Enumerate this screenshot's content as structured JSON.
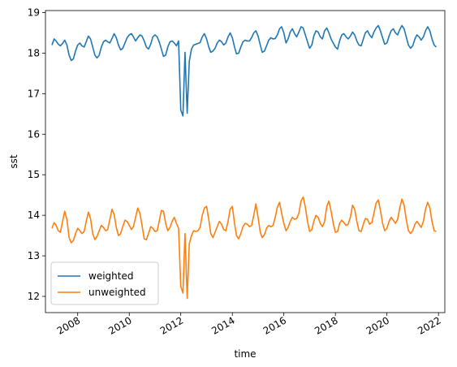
{
  "chart_data": {
    "type": "line",
    "title": "",
    "xlabel": "time",
    "ylabel": "sst",
    "xlim": [
      "2006-10-01",
      "2022-04-01"
    ],
    "ylim": [
      11.6,
      19.05
    ],
    "x_ticks": [
      "2008",
      "2010",
      "2012",
      "2014",
      "2016",
      "2018",
      "2020",
      "2022"
    ],
    "y_ticks": [
      "12",
      "13",
      "14",
      "15",
      "16",
      "17",
      "18",
      "19"
    ],
    "grid": false,
    "legend_position": "lower-left",
    "colors": {
      "weighted": "#1f77b4",
      "unweighted": "#ff7f0e"
    },
    "series": [
      {
        "name": "weighted",
        "x": [
          "2007-01-01",
          "2007-02-01",
          "2007-03-01",
          "2007-04-01",
          "2007-05-01",
          "2007-06-01",
          "2007-07-01",
          "2007-08-01",
          "2007-09-01",
          "2007-10-01",
          "2007-11-01",
          "2007-12-01",
          "2008-01-01",
          "2008-02-01",
          "2008-03-01",
          "2008-04-01",
          "2008-05-01",
          "2008-06-01",
          "2008-07-01",
          "2008-08-01",
          "2008-09-01",
          "2008-10-01",
          "2008-11-01",
          "2008-12-01",
          "2009-01-01",
          "2009-02-01",
          "2009-03-01",
          "2009-04-01",
          "2009-05-01",
          "2009-06-01",
          "2009-07-01",
          "2009-08-01",
          "2009-09-01",
          "2009-10-01",
          "2009-11-01",
          "2009-12-01",
          "2010-01-01",
          "2010-02-01",
          "2010-03-01",
          "2010-04-01",
          "2010-05-01",
          "2010-06-01",
          "2010-07-01",
          "2010-08-01",
          "2010-09-01",
          "2010-10-01",
          "2010-11-01",
          "2010-12-01",
          "2011-01-01",
          "2011-02-01",
          "2011-03-01",
          "2011-04-01",
          "2011-05-01",
          "2011-06-01",
          "2011-07-01",
          "2011-08-01",
          "2011-09-01",
          "2011-10-01",
          "2011-11-01",
          "2011-12-01",
          "2012-01-01",
          "2012-02-01",
          "2012-03-01",
          "2012-04-01",
          "2012-05-01",
          "2012-06-01",
          "2012-07-01",
          "2012-08-01",
          "2012-09-01",
          "2012-10-01",
          "2012-11-01",
          "2012-12-01",
          "2013-01-01",
          "2013-02-01",
          "2013-03-01",
          "2013-04-01",
          "2013-05-01",
          "2013-06-01",
          "2013-07-01",
          "2013-08-01",
          "2013-09-01",
          "2013-10-01",
          "2013-11-01",
          "2013-12-01",
          "2014-01-01",
          "2014-02-01",
          "2014-03-01",
          "2014-04-01",
          "2014-05-01",
          "2014-06-01",
          "2014-07-01",
          "2014-08-01",
          "2014-09-01",
          "2014-10-01",
          "2014-11-01",
          "2014-12-01",
          "2015-01-01",
          "2015-02-01",
          "2015-03-01",
          "2015-04-01",
          "2015-05-01",
          "2015-06-01",
          "2015-07-01",
          "2015-08-01",
          "2015-09-01",
          "2015-10-01",
          "2015-11-01",
          "2015-12-01",
          "2016-01-01",
          "2016-02-01",
          "2016-03-01",
          "2016-04-01",
          "2016-05-01",
          "2016-06-01",
          "2016-07-01",
          "2016-08-01",
          "2016-09-01",
          "2016-10-01",
          "2016-11-01",
          "2016-12-01",
          "2017-01-01",
          "2017-02-01",
          "2017-03-01",
          "2017-04-01",
          "2017-05-01",
          "2017-06-01",
          "2017-07-01",
          "2017-08-01",
          "2017-09-01",
          "2017-10-01",
          "2017-11-01",
          "2017-12-01",
          "2018-01-01",
          "2018-02-01",
          "2018-03-01",
          "2018-04-01",
          "2018-05-01",
          "2018-06-01",
          "2018-07-01",
          "2018-08-01",
          "2018-09-01",
          "2018-10-01",
          "2018-11-01",
          "2018-12-01",
          "2019-01-01",
          "2019-02-01",
          "2019-03-01",
          "2019-04-01",
          "2019-05-01",
          "2019-06-01",
          "2019-07-01",
          "2019-08-01",
          "2019-09-01",
          "2019-10-01",
          "2019-11-01",
          "2019-12-01",
          "2020-01-01",
          "2020-02-01",
          "2020-03-01",
          "2020-04-01",
          "2020-05-01",
          "2020-06-01",
          "2020-07-01",
          "2020-08-01",
          "2020-09-01",
          "2020-10-01",
          "2020-11-01",
          "2020-12-01",
          "2021-01-01",
          "2021-02-01",
          "2021-03-01",
          "2021-04-01",
          "2021-05-01",
          "2021-06-01",
          "2021-07-01",
          "2021-08-01",
          "2021-09-01",
          "2021-10-01",
          "2021-11-01",
          "2021-12-01"
        ],
        "values": [
          18.2,
          18.35,
          18.3,
          18.22,
          18.18,
          18.24,
          18.32,
          18.2,
          17.95,
          17.82,
          17.86,
          18.05,
          18.2,
          18.25,
          18.18,
          18.15,
          18.28,
          18.42,
          18.35,
          18.15,
          17.95,
          17.88,
          17.95,
          18.15,
          18.28,
          18.32,
          18.28,
          18.25,
          18.36,
          18.48,
          18.38,
          18.2,
          18.08,
          18.12,
          18.25,
          18.38,
          18.45,
          18.48,
          18.4,
          18.3,
          18.38,
          18.45,
          18.42,
          18.3,
          18.15,
          18.1,
          18.22,
          18.4,
          18.45,
          18.4,
          18.28,
          18.1,
          17.92,
          17.95,
          18.15,
          18.28,
          18.3,
          18.25,
          18.18,
          18.3,
          16.6,
          16.45,
          18.02,
          16.52,
          17.8,
          18.1,
          18.2,
          18.22,
          18.24,
          18.26,
          18.4,
          18.48,
          18.35,
          18.15,
          18.02,
          18.05,
          18.12,
          18.25,
          18.32,
          18.28,
          18.2,
          18.25,
          18.4,
          18.5,
          18.38,
          18.15,
          17.98,
          18.0,
          18.15,
          18.28,
          18.32,
          18.3,
          18.3,
          18.38,
          18.5,
          18.55,
          18.42,
          18.2,
          18.02,
          18.05,
          18.18,
          18.32,
          18.38,
          18.35,
          18.36,
          18.45,
          18.6,
          18.65,
          18.5,
          18.25,
          18.35,
          18.52,
          18.6,
          18.48,
          18.4,
          18.52,
          18.65,
          18.62,
          18.45,
          18.28,
          18.12,
          18.2,
          18.42,
          18.55,
          18.52,
          18.4,
          18.35,
          18.55,
          18.62,
          18.5,
          18.35,
          18.25,
          18.15,
          18.1,
          18.3,
          18.45,
          18.48,
          18.4,
          18.35,
          18.42,
          18.52,
          18.45,
          18.3,
          18.2,
          18.18,
          18.35,
          18.5,
          18.55,
          18.45,
          18.38,
          18.52,
          18.62,
          18.68,
          18.55,
          18.38,
          18.22,
          18.25,
          18.42,
          18.55,
          18.6,
          18.5,
          18.45,
          18.58,
          18.68,
          18.6,
          18.4,
          18.2,
          18.12,
          18.18,
          18.35,
          18.45,
          18.4,
          18.32,
          18.4,
          18.55,
          18.65,
          18.55,
          18.35,
          18.2,
          18.15
        ]
      },
      {
        "name": "unweighted",
        "x": [
          "2007-01-01",
          "2007-02-01",
          "2007-03-01",
          "2007-04-01",
          "2007-05-01",
          "2007-06-01",
          "2007-07-01",
          "2007-08-01",
          "2007-09-01",
          "2007-10-01",
          "2007-11-01",
          "2007-12-01",
          "2008-01-01",
          "2008-02-01",
          "2008-03-01",
          "2008-04-01",
          "2008-05-01",
          "2008-06-01",
          "2008-07-01",
          "2008-08-01",
          "2008-09-01",
          "2008-10-01",
          "2008-11-01",
          "2008-12-01",
          "2009-01-01",
          "2009-02-01",
          "2009-03-01",
          "2009-04-01",
          "2009-05-01",
          "2009-06-01",
          "2009-07-01",
          "2009-08-01",
          "2009-09-01",
          "2009-10-01",
          "2009-11-01",
          "2009-12-01",
          "2010-01-01",
          "2010-02-01",
          "2010-03-01",
          "2010-04-01",
          "2010-05-01",
          "2010-06-01",
          "2010-07-01",
          "2010-08-01",
          "2010-09-01",
          "2010-10-01",
          "2010-11-01",
          "2010-12-01",
          "2011-01-01",
          "2011-02-01",
          "2011-03-01",
          "2011-04-01",
          "2011-05-01",
          "2011-06-01",
          "2011-07-01",
          "2011-08-01",
          "2011-09-01",
          "2011-10-01",
          "2011-11-01",
          "2011-12-01",
          "2012-01-01",
          "2012-02-01",
          "2012-03-01",
          "2012-04-01",
          "2012-05-01",
          "2012-06-01",
          "2012-07-01",
          "2012-08-01",
          "2012-09-01",
          "2012-10-01",
          "2012-11-01",
          "2012-12-01",
          "2013-01-01",
          "2013-02-01",
          "2013-03-01",
          "2013-04-01",
          "2013-05-01",
          "2013-06-01",
          "2013-07-01",
          "2013-08-01",
          "2013-09-01",
          "2013-10-01",
          "2013-11-01",
          "2013-12-01",
          "2014-01-01",
          "2014-02-01",
          "2014-03-01",
          "2014-04-01",
          "2014-05-01",
          "2014-06-01",
          "2014-07-01",
          "2014-08-01",
          "2014-09-01",
          "2014-10-01",
          "2014-11-01",
          "2014-12-01",
          "2015-01-01",
          "2015-02-01",
          "2015-03-01",
          "2015-04-01",
          "2015-05-01",
          "2015-06-01",
          "2015-07-01",
          "2015-08-01",
          "2015-09-01",
          "2015-10-01",
          "2015-11-01",
          "2015-12-01",
          "2016-01-01",
          "2016-02-01",
          "2016-03-01",
          "2016-04-01",
          "2016-05-01",
          "2016-06-01",
          "2016-07-01",
          "2016-08-01",
          "2016-09-01",
          "2016-10-01",
          "2016-11-01",
          "2016-12-01",
          "2017-01-01",
          "2017-02-01",
          "2017-03-01",
          "2017-04-01",
          "2017-05-01",
          "2017-06-01",
          "2017-07-01",
          "2017-08-01",
          "2017-09-01",
          "2017-10-01",
          "2017-11-01",
          "2017-12-01",
          "2018-01-01",
          "2018-02-01",
          "2018-03-01",
          "2018-04-01",
          "2018-05-01",
          "2018-06-01",
          "2018-07-01",
          "2018-08-01",
          "2018-09-01",
          "2018-10-01",
          "2018-11-01",
          "2018-12-01",
          "2019-01-01",
          "2019-02-01",
          "2019-03-01",
          "2019-04-01",
          "2019-05-01",
          "2019-06-01",
          "2019-07-01",
          "2019-08-01",
          "2019-09-01",
          "2019-10-01",
          "2019-11-01",
          "2019-12-01",
          "2020-01-01",
          "2020-02-01",
          "2020-03-01",
          "2020-04-01",
          "2020-05-01",
          "2020-06-01",
          "2020-07-01",
          "2020-08-01",
          "2020-09-01",
          "2020-10-01",
          "2020-11-01",
          "2020-12-01",
          "2021-01-01",
          "2021-02-01",
          "2021-03-01",
          "2021-04-01",
          "2021-05-01",
          "2021-06-01",
          "2021-07-01",
          "2021-08-01",
          "2021-09-01",
          "2021-10-01",
          "2021-11-01",
          "2021-12-01"
        ],
        "values": [
          13.68,
          13.82,
          13.75,
          13.62,
          13.58,
          13.85,
          14.1,
          13.9,
          13.45,
          13.32,
          13.38,
          13.55,
          13.68,
          13.62,
          13.55,
          13.6,
          13.85,
          14.08,
          13.92,
          13.55,
          13.4,
          13.48,
          13.62,
          13.75,
          13.7,
          13.62,
          13.65,
          13.9,
          14.15,
          14.02,
          13.7,
          13.5,
          13.55,
          13.72,
          13.88,
          13.85,
          13.75,
          13.65,
          13.72,
          13.95,
          14.18,
          14.05,
          13.75,
          13.42,
          13.4,
          13.55,
          13.72,
          13.68,
          13.6,
          13.62,
          13.85,
          14.12,
          14.1,
          13.8,
          13.62,
          13.7,
          13.85,
          13.95,
          13.8,
          13.68,
          12.25,
          12.08,
          13.55,
          11.95,
          13.3,
          13.5,
          13.62,
          13.6,
          13.62,
          13.7,
          14.0,
          14.18,
          14.22,
          13.9,
          13.55,
          13.45,
          13.58,
          13.72,
          13.85,
          13.78,
          13.65,
          13.62,
          13.85,
          14.15,
          14.22,
          13.8,
          13.5,
          13.42,
          13.55,
          13.72,
          13.8,
          13.78,
          13.72,
          13.75,
          14.0,
          14.28,
          13.95,
          13.58,
          13.45,
          13.52,
          13.68,
          13.75,
          13.72,
          13.75,
          13.95,
          14.2,
          14.32,
          14.05,
          13.8,
          13.62,
          13.7,
          13.85,
          13.95,
          13.9,
          13.92,
          14.05,
          14.35,
          14.45,
          14.2,
          13.85,
          13.6,
          13.65,
          13.85,
          14.0,
          13.95,
          13.8,
          13.72,
          13.85,
          14.22,
          14.35,
          14.1,
          13.8,
          13.58,
          13.6,
          13.8,
          13.88,
          13.82,
          13.75,
          13.78,
          13.95,
          14.25,
          14.15,
          13.85,
          13.62,
          13.6,
          13.78,
          13.92,
          13.9,
          13.78,
          13.82,
          14.05,
          14.3,
          14.38,
          14.12,
          13.8,
          13.62,
          13.68,
          13.85,
          13.95,
          13.88,
          13.8,
          13.9,
          14.18,
          14.4,
          14.25,
          13.9,
          13.62,
          13.55,
          13.62,
          13.78,
          13.85,
          13.78,
          13.7,
          13.85,
          14.15,
          14.32,
          14.18,
          13.85,
          13.62,
          13.6
        ]
      }
    ]
  }
}
